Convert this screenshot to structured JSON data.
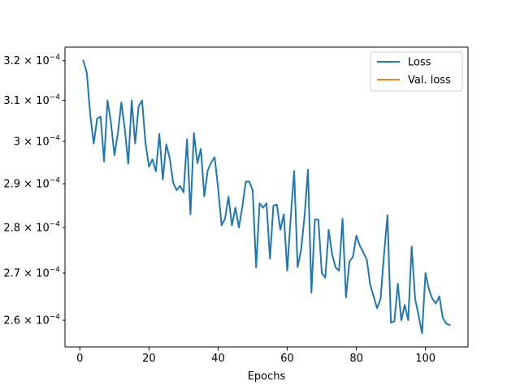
{
  "chart_data": {
    "type": "line",
    "title": "",
    "xlabel": "Epochs",
    "ylabel": "",
    "xlim": [
      -4.3,
      112.3
    ],
    "ylim": [
      0.0002545,
      0.0003235
    ],
    "y_scale": "log",
    "x_ticks": [
      0,
      20,
      40,
      60,
      80,
      100
    ],
    "y_ticks": [
      0.00026,
      0.00027,
      0.00028,
      0.00029,
      0.0003,
      0.00031,
      0.00032
    ],
    "y_tick_labels": [
      {
        "mant": "2.6",
        "exp": "−4"
      },
      {
        "mant": "2.7",
        "exp": "−4"
      },
      {
        "mant": "2.8",
        "exp": "−4"
      },
      {
        "mant": "2.9",
        "exp": "−4"
      },
      {
        "mant": "3",
        "exp": "−4"
      },
      {
        "mant": "3.1",
        "exp": "−4"
      },
      {
        "mant": "3.2",
        "exp": "−4"
      }
    ],
    "grid": false,
    "legend_position": "top-right",
    "series": [
      {
        "name": "Loss",
        "color": "#1f77b4",
        "x": [
          1,
          2,
          3,
          4,
          5,
          6,
          7,
          8,
          9,
          10,
          11,
          12,
          13,
          14,
          15,
          16,
          17,
          18,
          19,
          20,
          21,
          22,
          23,
          24,
          25,
          26,
          27,
          28,
          29,
          30,
          31,
          32,
          33,
          34,
          35,
          36,
          37,
          38,
          39,
          40,
          41,
          42,
          43,
          44,
          45,
          46,
          47,
          48,
          49,
          50,
          51,
          52,
          53,
          54,
          55,
          56,
          57,
          58,
          59,
          60,
          61,
          62,
          63,
          64,
          65,
          66,
          67,
          68,
          69,
          70,
          71,
          72,
          73,
          74,
          75,
          76,
          77,
          78,
          79,
          80,
          81,
          82,
          83,
          84,
          85,
          86,
          87,
          88,
          89,
          90,
          91,
          92,
          93,
          94,
          95,
          96,
          97,
          98,
          99,
          100,
          101,
          102,
          103,
          104,
          105,
          106,
          107
        ],
        "y": [
          0.00032,
          0.000317,
          0.0003065,
          0.0002995,
          0.0003055,
          0.000306,
          0.0002952,
          0.00031,
          0.0003045,
          0.0002967,
          0.000302,
          0.0003095,
          0.000303,
          0.0002947,
          0.00031,
          0.0002995,
          0.0003085,
          0.00031,
          0.0002995,
          0.000294,
          0.0002957,
          0.0002929,
          0.0003018,
          0.000291,
          0.0002993,
          0.000296,
          0.0002902,
          0.0002885,
          0.0002895,
          0.000288,
          0.0003005,
          0.000283,
          0.000302,
          0.0002948,
          0.0002982,
          0.0002871,
          0.0002931,
          0.000295,
          0.0002962,
          0.000289,
          0.0002805,
          0.000282,
          0.000287,
          0.0002805,
          0.0002845,
          0.00028,
          0.0002847,
          0.0002905,
          0.0002905,
          0.0002885,
          0.0002712,
          0.0002855,
          0.0002845,
          0.0002855,
          0.0002731,
          0.000285,
          0.0002852,
          0.0002795,
          0.000283,
          0.0002705,
          0.0002822,
          0.000293,
          0.0002713,
          0.000275,
          0.0002825,
          0.0002933,
          0.0002658,
          0.0002818,
          0.0002818,
          0.00027,
          0.000269,
          0.0002795,
          0.000274,
          0.0002712,
          0.0002705,
          0.000282,
          0.0002648,
          0.0002725,
          0.0002735,
          0.0002782,
          0.000276,
          0.0002745,
          0.000273,
          0.0002675,
          0.000265,
          0.0002625,
          0.0002645,
          0.000274,
          0.0002828,
          0.0002595,
          0.0002598,
          0.0002677,
          0.00026,
          0.0002632,
          0.00026,
          0.0002758,
          0.0002645,
          0.000261,
          0.0002573,
          0.00027,
          0.0002665,
          0.0002645,
          0.0002635,
          0.000265,
          0.0002605,
          0.0002593,
          0.000259
        ]
      },
      {
        "name": "Val. loss",
        "color": "#ff7f0e",
        "x": [],
        "y": []
      }
    ]
  }
}
